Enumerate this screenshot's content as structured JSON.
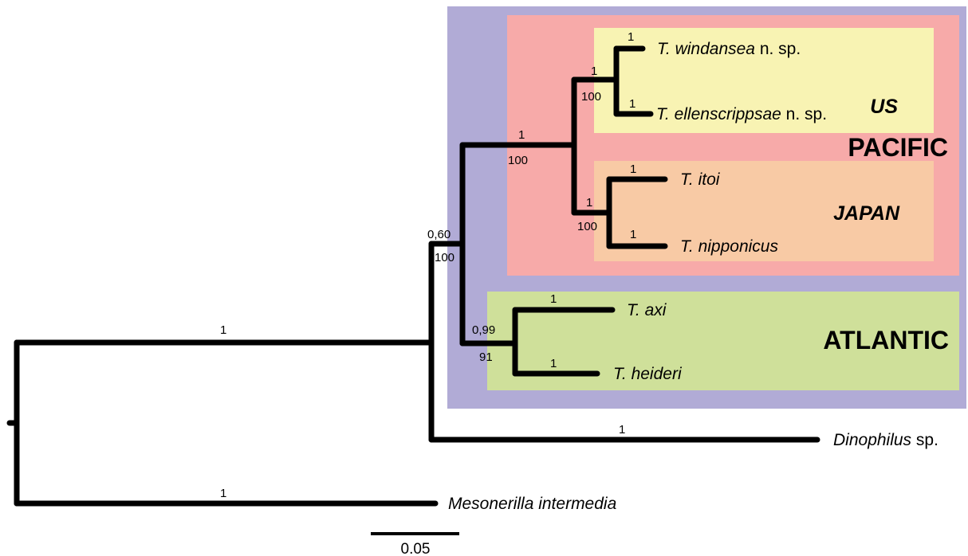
{
  "colors": {
    "purple_region": "#b1abd6",
    "pacific_region": "#f7aaa9",
    "us_region": "#f8f3b3",
    "japan_region": "#f8caa5",
    "atlantic_region": "#cfe09a",
    "branch": "#000000"
  },
  "groups": {
    "pacific": "PACIFIC",
    "us": "US",
    "japan": "JAPAN",
    "atlantic": "ATLANTIC"
  },
  "taxa": {
    "windansea": {
      "genus": "T.",
      "epithet": "windansea",
      "suffix": " n. sp."
    },
    "ellenscrippsae": {
      "genus": "T.",
      "epithet": "ellenscrippsae",
      "suffix": " n. sp."
    },
    "itoi": {
      "genus": "T.",
      "epithet": "itoi",
      "suffix": ""
    },
    "nipponicus": {
      "genus": "T.",
      "epithet": "nipponicus",
      "suffix": ""
    },
    "axi": {
      "genus": "T.",
      "epithet": "axi",
      "suffix": ""
    },
    "heideri": {
      "genus": "T.",
      "epithet": "heideri",
      "suffix": ""
    },
    "dinophilus": {
      "genus": "",
      "epithet": "Dinophilus",
      "suffix": " sp."
    },
    "mesonerilla": {
      "genus": "",
      "epithet": "Mesonerilla intermedia",
      "suffix": ""
    }
  },
  "support": {
    "windansea_pp": "1",
    "ellenscrippsae_pp": "1",
    "us_clade_pp": "1",
    "us_clade_bs": "100",
    "pacific_clade_pp": "1",
    "pacific_clade_bs": "100",
    "itoi_pp": "1",
    "nipponicus_pp": "1",
    "japan_clade_pp": "1",
    "japan_clade_bs": "100",
    "trilobodrilus_pp": "0,60",
    "trilobodrilus_bs": "100",
    "atlantic_clade_pp": "0,99",
    "atlantic_clade_bs": "91",
    "axi_pp": "1",
    "heideri_pp": "1",
    "ingroup_pp": "1",
    "dinophilus_pp": "1",
    "mesonerilla_pp": "1"
  },
  "scale_bar": {
    "label": "0.05"
  }
}
